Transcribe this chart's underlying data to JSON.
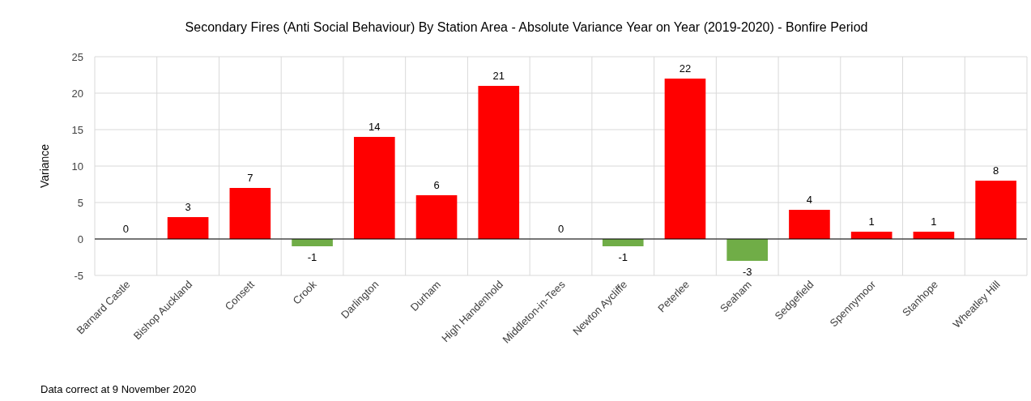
{
  "chart_data": {
    "type": "bar",
    "title": "Secondary Fires (Anti Social Behaviour) By Station Area - Absolute Variance Year on Year (2019-2020) - Bonfire Period",
    "ylabel": "Variance",
    "categories": [
      "Barnard Castle",
      "Bishop Auckland",
      "Consett",
      "Crook",
      "Darlington",
      "Durham",
      "High Handenhold",
      "Middleton-in-Tees",
      "Newton Aycliffe",
      "Peterlee",
      "Seaham",
      "Sedgefield",
      "Spennymoor",
      "Stanhope",
      "Wheatley Hill"
    ],
    "values": [
      0,
      3,
      7,
      -1,
      14,
      6,
      21,
      0,
      -1,
      22,
      -3,
      4,
      1,
      1,
      8
    ],
    "colors": [
      "#ff0000",
      "#ff0000",
      "#ff0000",
      "#70ad47",
      "#ff0000",
      "#ff0000",
      "#ff0000",
      "#ff0000",
      "#70ad47",
      "#ff0000",
      "#70ad47",
      "#ff0000",
      "#ff0000",
      "#ff0000",
      "#ff0000"
    ],
    "ylim": [
      -5,
      25
    ],
    "yticks": [
      -5,
      0,
      5,
      10,
      15,
      20,
      25
    ],
    "grid": true,
    "data_labels": true,
    "annotations": [
      "Data correct at 9 November 2020"
    ]
  }
}
